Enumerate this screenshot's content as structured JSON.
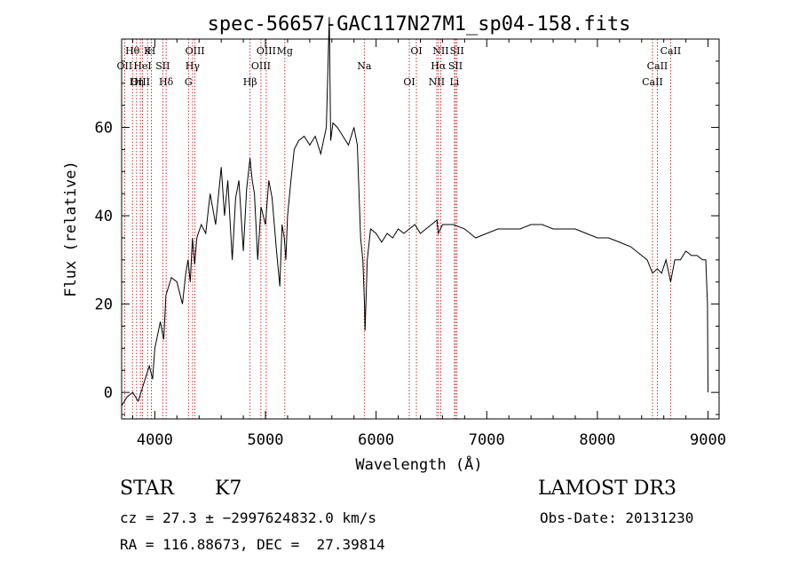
{
  "chart_data": {
    "type": "line",
    "title": "spec-56657-GAC117N27M1_sp04-158.fits",
    "xlabel": "Wavelength (Å)",
    "ylabel": "Flux (relative)",
    "xlim": [
      3700,
      9100
    ],
    "ylim": [
      -6,
      80
    ],
    "x_ticks": [
      4000,
      5000,
      6000,
      7000,
      8000,
      9000
    ],
    "y_ticks": [
      0,
      20,
      40,
      60
    ],
    "grid": false,
    "series": [
      {
        "x": [
          3700,
          3750,
          3800,
          3850,
          3900,
          3950,
          3980,
          4000,
          4050,
          4080,
          4100,
          4150,
          4200,
          4250,
          4280,
          4300,
          4320,
          4340,
          4360,
          4380,
          4420,
          4460,
          4500,
          4550,
          4600,
          4630,
          4660,
          4700,
          4730,
          4760,
          4800,
          4830,
          4860,
          4880,
          4900,
          4930,
          4960,
          5000,
          5030,
          5060,
          5100,
          5130,
          5150,
          5170,
          5184,
          5200,
          5230,
          5260,
          5300,
          5350,
          5400,
          5450,
          5500,
          5550,
          5577,
          5590,
          5610,
          5650,
          5700,
          5750,
          5800,
          5830,
          5860,
          5880,
          5895,
          5900,
          5920,
          5950,
          6000,
          6050,
          6100,
          6150,
          6200,
          6250,
          6300,
          6350,
          6400,
          6450,
          6500,
          6550,
          6563,
          6600,
          6650,
          6700,
          6800,
          6900,
          7000,
          7100,
          7200,
          7300,
          7400,
          7500,
          7600,
          7700,
          7800,
          7900,
          8000,
          8100,
          8200,
          8300,
          8400,
          8450,
          8498,
          8542,
          8580,
          8620,
          8662,
          8700,
          8750,
          8800,
          8850,
          8900,
          8950,
          8980,
          8995,
          9000
        ],
        "y": [
          -3,
          -1,
          0,
          -2,
          2,
          6,
          3,
          10,
          16,
          12,
          22,
          26,
          25,
          20,
          27,
          30,
          25,
          35,
          29,
          35,
          38,
          36,
          45,
          38,
          51,
          40,
          48,
          30,
          44,
          48,
          32,
          46,
          53,
          48,
          45,
          30,
          42,
          38,
          48,
          44,
          32,
          24,
          38,
          35,
          30,
          40,
          48,
          55,
          57,
          58,
          56,
          58,
          54,
          60,
          85,
          57,
          61,
          60,
          58,
          56,
          60,
          56,
          35,
          30,
          20,
          14,
          30,
          37,
          36,
          34,
          36,
          35,
          37,
          36,
          37,
          38,
          36,
          37,
          38,
          39,
          36,
          38,
          38,
          38,
          37,
          35,
          36,
          37,
          37,
          37,
          38,
          38,
          37,
          37,
          37,
          36,
          35,
          35,
          34,
          33,
          31,
          30,
          27,
          28,
          27,
          30,
          25,
          30,
          30,
          32,
          31,
          31,
          30,
          30,
          20,
          0
        ]
      }
    ],
    "line_labels": [
      {
        "label": "Hθ",
        "wave": 3798
      },
      {
        "label": "OII",
        "wave": 3727
      },
      {
        "label": "OIII",
        "wave": 3869
      },
      {
        "label": "K",
        "wave": 3934
      },
      {
        "label": "HeI",
        "wave": 3889
      },
      {
        "label": "Hη",
        "wave": 3835
      },
      {
        "label": "H",
        "wave": 3969
      },
      {
        "label": "SII",
        "wave": 4072
      },
      {
        "label": "Hδ",
        "wave": 4102
      },
      {
        "label": "OIII",
        "wave": 4363
      },
      {
        "label": "Hγ",
        "wave": 4341
      },
      {
        "label": "G",
        "wave": 4304
      },
      {
        "label": "OIII",
        "wave": 5007
      },
      {
        "label": "OIII",
        "wave": 4959
      },
      {
        "label": "Hβ",
        "wave": 4861
      },
      {
        "label": "Mg",
        "wave": 5175
      },
      {
        "label": "Na",
        "wave": 5893
      },
      {
        "label": "OI",
        "wave": 6300
      },
      {
        "label": "OI",
        "wave": 6364
      },
      {
        "label": "Hα",
        "wave": 6563
      },
      {
        "label": "NII",
        "wave": 6548
      },
      {
        "label": "NII",
        "wave": 6584
      },
      {
        "label": "SII",
        "wave": 6717
      },
      {
        "label": "Li",
        "wave": 6708
      },
      {
        "label": "SII",
        "wave": 6731
      },
      {
        "label": "CaII",
        "wave": 8542
      },
      {
        "label": "CaII",
        "wave": 8498
      },
      {
        "label": "CaII",
        "wave": 8662
      }
    ],
    "marker_lines": [
      3727,
      3798,
      3835,
      3869,
      3889,
      3934,
      3969,
      4072,
      4102,
      4304,
      4341,
      4363,
      4861,
      4959,
      5007,
      5175,
      5893,
      6300,
      6364,
      6548,
      6563,
      6584,
      6708,
      6717,
      6731,
      8498,
      8542,
      8662
    ]
  },
  "info": {
    "class": "STAR",
    "subclass": "K7",
    "survey": "LAMOST DR3",
    "cz": "cz = 27.3 ± −2997624832.0 km/s",
    "obs_date": "Obs-Date: 20131230",
    "radec": "RA = 116.88673, DEC =  27.39814"
  },
  "colors": {
    "line": "#000000",
    "marker": "#b00000"
  }
}
